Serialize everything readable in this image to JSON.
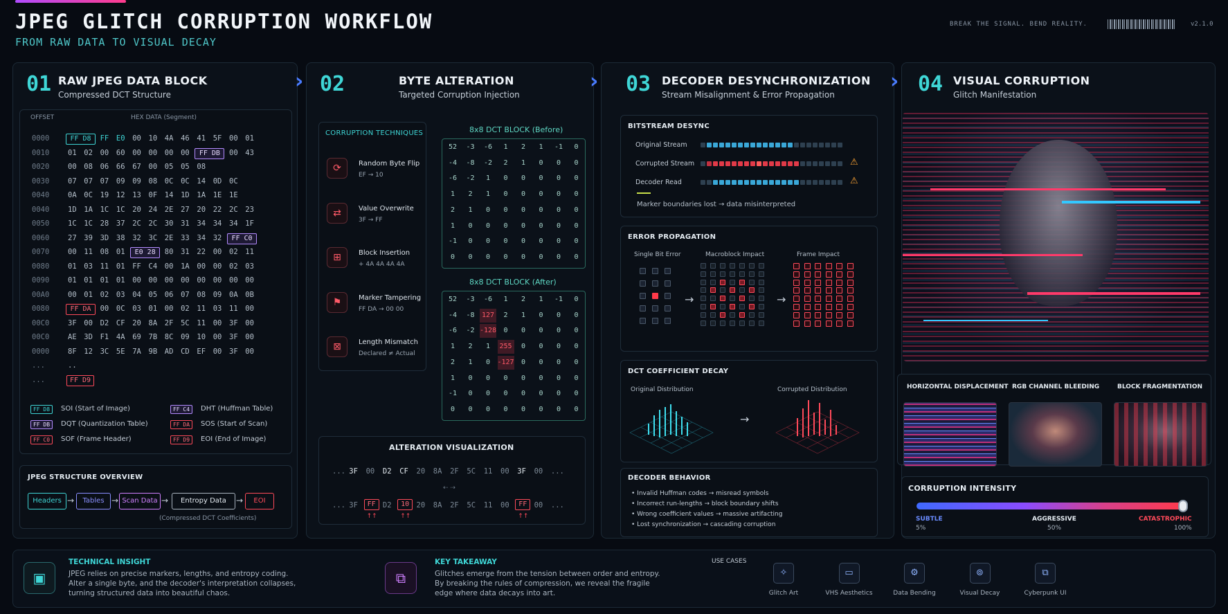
{
  "header": {
    "title": "JPEG GLITCH CORRUPTION WORKFLOW",
    "subtitle": "FROM RAW DATA TO VISUAL DECAY",
    "tagline": "BREAK THE SIGNAL. BEND REALITY.",
    "version": "v2.1.0"
  },
  "steps": [
    {
      "num": "01",
      "title": "RAW JPEG DATA BLOCK",
      "subtitle": "Compressed DCT Structure"
    },
    {
      "num": "02",
      "title": "BYTE ALTERATION",
      "subtitle": "Targeted Corruption Injection"
    },
    {
      "num": "03",
      "title": "DECODER DESYNCHRONIZATION",
      "subtitle": "Stream Misalignment & Error Propagation"
    },
    {
      "num": "04",
      "title": "VISUAL CORRUPTION",
      "subtitle": "Glitch Manifestation"
    }
  ],
  "hex": {
    "offset_header": "OFFSET",
    "data_header": "HEX DATA (Segment)",
    "rows": [
      {
        "off": "0000",
        "data": "FF D8 FF E0 00 10 4A 46 41 5F 00 01"
      },
      {
        "off": "0010",
        "data": "01 02 00 60 00 00 00 00 FF DB 00 43"
      },
      {
        "off": "0020",
        "data": "00 08 06 66 67 00 05 05 08"
      },
      {
        "off": "0030",
        "data": "07 07 07 09 09 08 0C 0C 14 0D 0C"
      },
      {
        "off": "0040",
        "data": "0A 0C 19 12 13 0F 14 1D 1A 1E 1E"
      },
      {
        "off": "0040",
        "data": "1D 1A 1C 1C 20 24 2E 27 20 22 2C 23"
      },
      {
        "off": "0050",
        "data": "1C 1C 28 37 2C 2C 30 31 34 34 34 1F"
      },
      {
        "off": "0060",
        "data": "27 39 3D 38 32 3C 2E 33 34 32 FF C0"
      },
      {
        "off": "0070",
        "data": "00 11 08 01 E0 28 80 31 22 00 02 11"
      },
      {
        "off": "0080",
        "data": "01 03 11 01 FF C4 00 1A 00 00 02 03"
      },
      {
        "off": "0090",
        "data": "01 01 01 01 00 00 00 00 00 00 00 00"
      },
      {
        "off": "00A0",
        "data": "00 01 02 03 04 05 06 07 08 09 0A 0B"
      },
      {
        "off": "0080",
        "data": "FF DA 00 0C 03 01 00 02 11 03 11 00"
      },
      {
        "off": "00C0",
        "data": "3F 00 D2 CF 20 8A 2F 5C 11 00 3F 00"
      },
      {
        "off": "00C0",
        "data": "AE 3D F1 4A 69 7B 8C 09 10 00 3F 00"
      },
      {
        "off": "0000",
        "data": "8F 12 3C 5E 7A 9B AD CD EF 00 3F 00"
      },
      {
        "off": "...",
        "data": ".."
      },
      {
        "off": "...",
        "data": "FF D9"
      }
    ],
    "legend": [
      {
        "code": "FF D8",
        "label": "SOI (Start of Image)",
        "kind": "c"
      },
      {
        "code": "FF C4",
        "label": "DHT (Huffman Table)",
        "kind": "p"
      },
      {
        "code": "FF DB",
        "label": "DQT (Quantization Table)",
        "kind": "p"
      },
      {
        "code": "FF DA",
        "label": "SOS (Start of Scan)",
        "kind": "r"
      },
      {
        "code": "FF C0",
        "label": "SOF (Frame Header)",
        "kind": "r"
      },
      {
        "code": "FF D9",
        "label": "EOI (End of Image)",
        "kind": "r"
      }
    ]
  },
  "structure": {
    "title": "JPEG STRUCTURE OVERVIEW",
    "items": [
      "Headers",
      "Tables",
      "Scan Data",
      "Entropy Data",
      "EOI"
    ],
    "note": "(Compressed DCT Coefficients)"
  },
  "techniques": {
    "title": "CORRUPTION TECHNIQUES",
    "items": [
      {
        "name": "Random Byte Flip",
        "desc": "EF → 10"
      },
      {
        "name": "Value Overwrite",
        "desc": "3F → FF"
      },
      {
        "name": "Block Insertion",
        "desc": "+ 4A 4A 4A 4A"
      },
      {
        "name": "Marker Tampering",
        "desc": "FF DA → 00 00"
      },
      {
        "name": "Length Mismatch",
        "desc": "Declared ≠ Actual"
      }
    ]
  },
  "dct_before": {
    "title": "8x8 DCT BLOCK (Before)",
    "rows": [
      [
        "52",
        "-3",
        "-6",
        "1",
        "2",
        "1",
        "-1",
        "0"
      ],
      [
        "-4",
        "-8",
        "-2",
        "2",
        "1",
        "0",
        "0",
        "0"
      ],
      [
        "-6",
        "-2",
        "1",
        "0",
        "0",
        "0",
        "0",
        "0"
      ],
      [
        "1",
        "2",
        "1",
        "0",
        "0",
        "0",
        "0",
        "0"
      ],
      [
        "2",
        "1",
        "0",
        "0",
        "0",
        "0",
        "0",
        "0"
      ],
      [
        "1",
        "0",
        "0",
        "0",
        "0",
        "0",
        "0",
        "0"
      ],
      [
        "-1",
        "0",
        "0",
        "0",
        "0",
        "0",
        "0",
        "0"
      ],
      [
        "0",
        "0",
        "0",
        "0",
        "0",
        "0",
        "0",
        "0"
      ]
    ]
  },
  "dct_after": {
    "title": "8x8 DCT BLOCK (After)",
    "rows": [
      [
        "52",
        "-3",
        "-6",
        "1",
        "2",
        "1",
        "-1",
        "0"
      ],
      [
        "-4",
        "-8",
        "127",
        "2",
        "1",
        "0",
        "0",
        "0"
      ],
      [
        "-6",
        "-2",
        "-128",
        "0",
        "0",
        "0",
        "0",
        "0"
      ],
      [
        "1",
        "2",
        "1",
        "255",
        "0",
        "0",
        "0",
        "0"
      ],
      [
        "2",
        "1",
        "0",
        "-127",
        "0",
        "0",
        "0",
        "0"
      ],
      [
        "1",
        "0",
        "0",
        "0",
        "0",
        "0",
        "0",
        "0"
      ],
      [
        "-1",
        "0",
        "0",
        "0",
        "0",
        "0",
        "0",
        "0"
      ],
      [
        "0",
        "0",
        "0",
        "0",
        "0",
        "0",
        "0",
        "0"
      ]
    ],
    "corrupted": [
      [
        1,
        2
      ],
      [
        2,
        2
      ],
      [
        3,
        3
      ],
      [
        4,
        3
      ]
    ]
  },
  "alteration": {
    "title": "ALTERATION VISUALIZATION",
    "before": [
      "...",
      "3F",
      "00",
      "D2",
      "CF",
      "20",
      "8A",
      "2F",
      "5C",
      "11",
      "00",
      "3F",
      "00",
      "..."
    ],
    "after": [
      "...",
      "3F",
      "FF",
      "D2",
      "10",
      "20",
      "8A",
      "2F",
      "5C",
      "11",
      "00",
      "FF",
      "00",
      "..."
    ],
    "changed": [
      2,
      4,
      11
    ]
  },
  "desync": {
    "title": "BITSTREAM DESYNC",
    "streams": [
      "Original Stream",
      "Corrupted Stream",
      "Decoder Read"
    ],
    "note": "Marker boundaries lost → data misinterpreted"
  },
  "error": {
    "title": "ERROR PROPAGATION",
    "labels": [
      "Single Bit Error",
      "Macroblock Impact",
      "Frame Impact"
    ]
  },
  "dctdecay": {
    "title": "DCT COEFFICIENT DECAY",
    "labels": [
      "Original Distribution",
      "Corrupted Distribution"
    ]
  },
  "behavior": {
    "title": "DECODER BEHAVIOR",
    "items": [
      "Invalid Huffman codes → misread symbols",
      "Incorrect run-lengths → block boundary shifts",
      "Wrong coefficient values → massive artifacting",
      "Lost synchronization → cascading corruption"
    ]
  },
  "effects": {
    "items": [
      "HORIZONTAL DISPLACEMENT",
      "RGB CHANNEL BLEEDING",
      "BLOCK FRAGMENTATION"
    ]
  },
  "intensity": {
    "title": "CORRUPTION INTENSITY",
    "value": 1.0,
    "levels": [
      {
        "label": "SUBTLE",
        "pct": "5%"
      },
      {
        "label": "AGGRESSIVE",
        "pct": "50%"
      },
      {
        "label": "CATASTROPHIC",
        "pct": "100%"
      }
    ]
  },
  "footer": {
    "insight_title": "TECHNICAL INSIGHT",
    "insight_text": [
      "JPEG relies on precise markers, lengths, and entropy coding.",
      "Alter a single byte, and the decoder's interpretation collapses,",
      "turning structured data into beautiful chaos."
    ],
    "takeaway_title": "KEY TAKEAWAY",
    "takeaway_text": [
      "Glitches emerge from the tension between order and entropy.",
      "By breaking the rules of compression, we reveal the fragile",
      "edge where data decays into art."
    ],
    "usecases_title": "USE CASES",
    "usecases": [
      "Glitch Art",
      "VHS Aesthetics",
      "Data Bending",
      "Visual Decay",
      "Cyberpunk UI"
    ]
  }
}
